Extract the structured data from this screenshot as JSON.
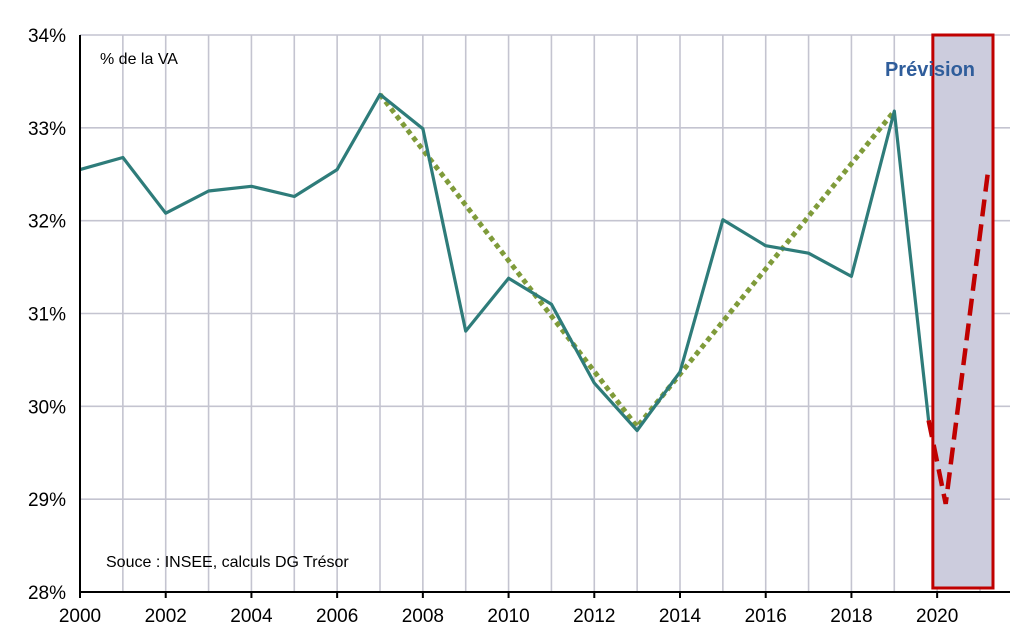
{
  "chart_data": {
    "type": "line",
    "unit_label": "% de la VA",
    "source": "Souce : INSEE, calculs DG Trésor",
    "forecast_label": "Prévision",
    "xlim": [
      2000,
      2021.7
    ],
    "ylim": [
      28,
      34
    ],
    "x_ticks": [
      "2000",
      "2002",
      "2004",
      "2006",
      "2008",
      "2010",
      "2012",
      "2014",
      "2016",
      "2018",
      "2020"
    ],
    "y_ticks": [
      "28%",
      "29%",
      "30%",
      "31%",
      "32%",
      "33%",
      "34%"
    ],
    "grid": true,
    "forecast_start": 2019.9,
    "series": [
      {
        "style": "solid",
        "x": [
          2000,
          2001,
          2002,
          2003,
          2004,
          2005,
          2006,
          2007,
          2008,
          2009,
          2010,
          2011,
          2012,
          2013,
          2014,
          2015,
          2016,
          2017,
          2018,
          2019,
          2019.8
        ],
        "values": [
          32.55,
          32.68,
          32.08,
          32.32,
          32.37,
          32.26,
          32.55,
          33.36,
          32.99,
          30.81,
          31.38,
          31.1,
          30.25,
          29.74,
          30.37,
          32.01,
          31.73,
          31.65,
          31.4,
          33.18,
          29.85
        ]
      },
      {
        "style": "dotted",
        "x": [
          2007,
          2013,
          2019
        ],
        "values": [
          33.36,
          29.78,
          33.18
        ]
      },
      {
        "style": "dashed",
        "x": [
          2019.8,
          2020.2,
          2021.2
        ],
        "values": [
          29.85,
          28.95,
          32.58
        ]
      }
    ],
    "colors": {
      "solid": "#2e7c7a",
      "dotted": "#7f9b3a",
      "dashed": "#c00000",
      "forecast_fill": "#ccccdd",
      "forecast_border": "#c00000",
      "forecast_text": "#2f5d9b",
      "grid": "#c4c4d0"
    }
  }
}
